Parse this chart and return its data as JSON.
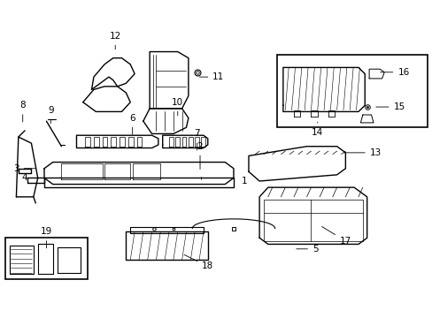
{
  "bg_color": "#ffffff",
  "line_color": "#000000",
  "line_width": 0.8
}
